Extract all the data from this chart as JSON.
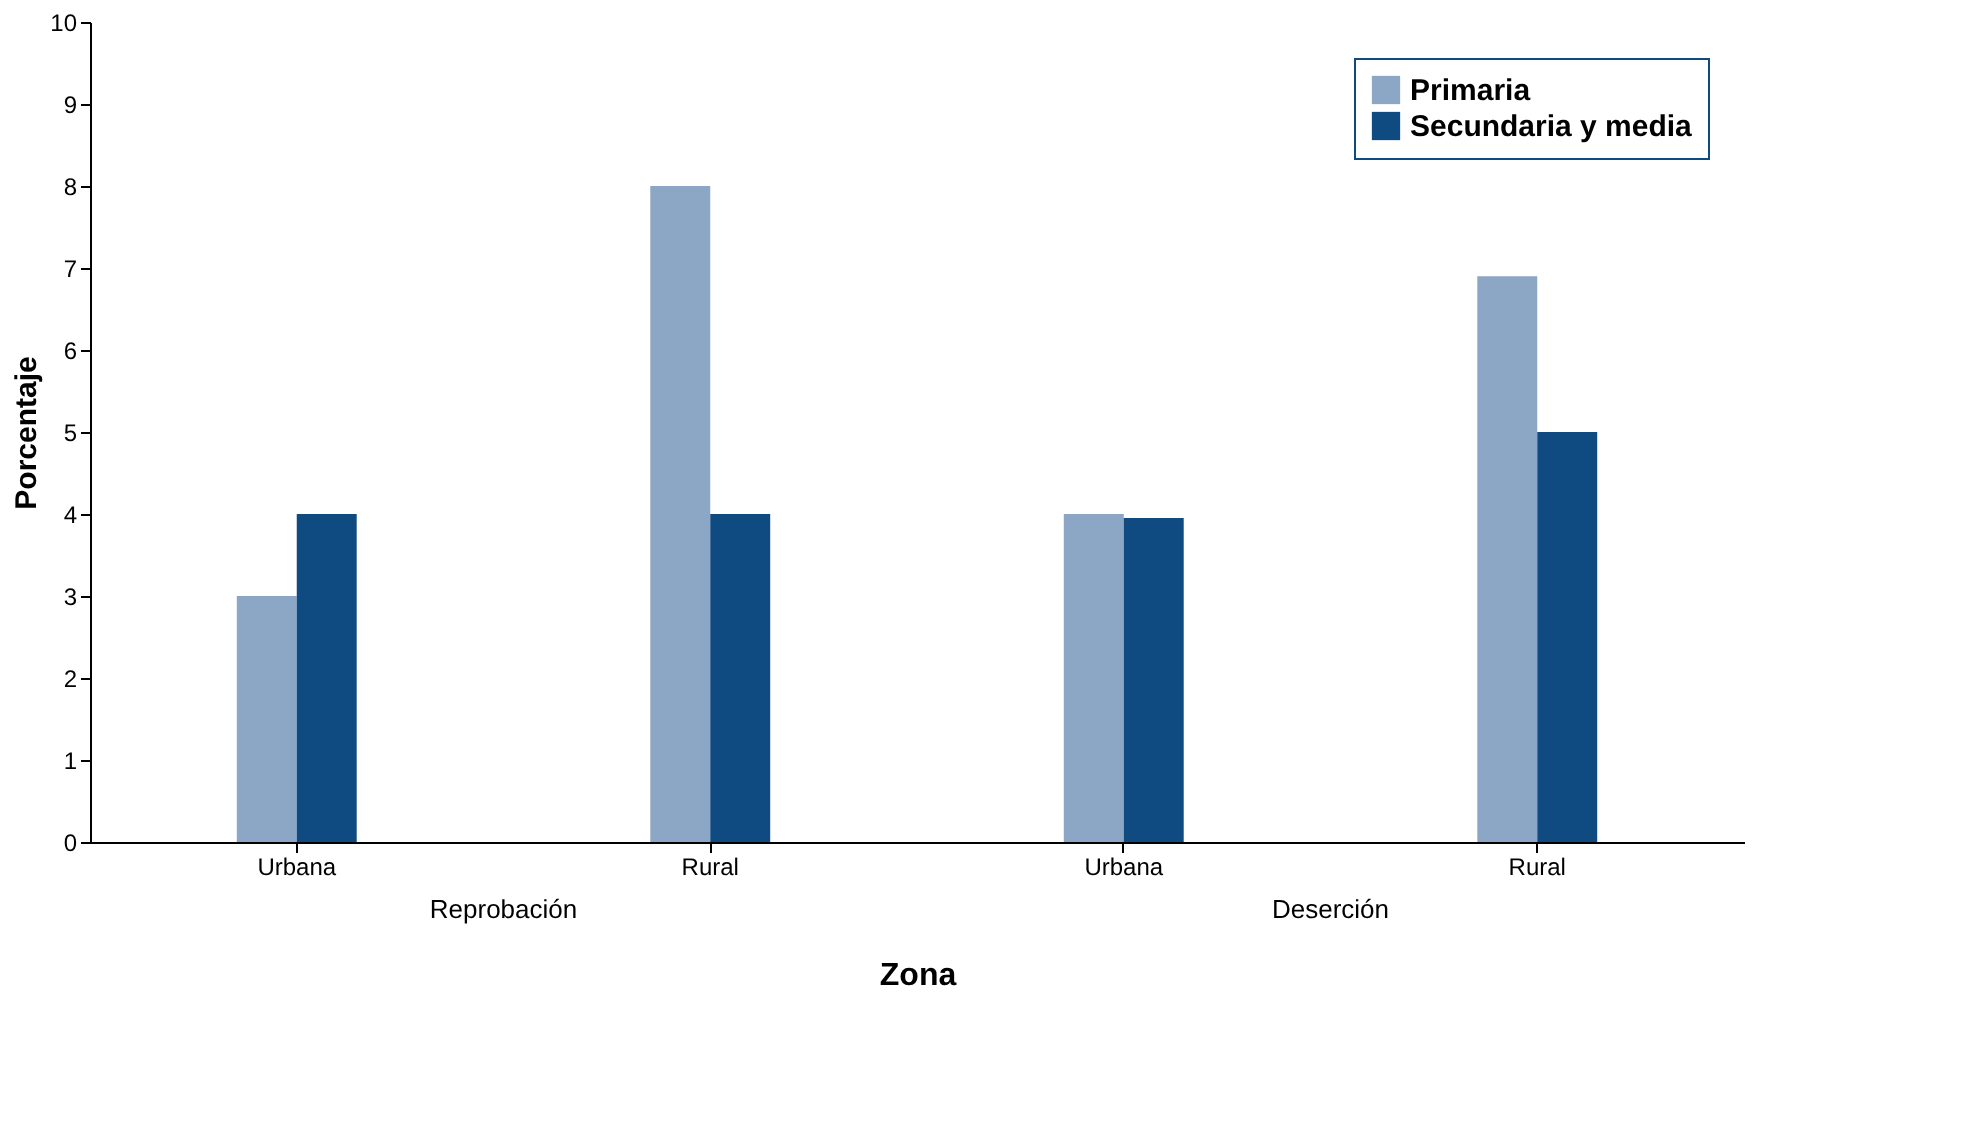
{
  "chart_data": {
    "type": "bar",
    "xlabel": "Zona",
    "ylabel": "Porcentaje",
    "categories": [
      "Urbana",
      "Rural",
      "Urbana",
      "Rural"
    ],
    "annotations": [
      "Reprobación",
      "Deserción"
    ],
    "series": [
      {
        "name": "Primaria",
        "color": "#8ca6c6",
        "values": [
          3,
          8,
          4,
          6.9
        ]
      },
      {
        "name": "Secundaria y media",
        "color": "#0f4a80",
        "values": [
          4,
          4,
          3.95,
          5
        ]
      }
    ],
    "ylim": [
      0,
      10
    ],
    "yticks": [
      0,
      1,
      2,
      3,
      4,
      5,
      6,
      7,
      8,
      9,
      10
    ],
    "grid": false,
    "legend": "top right"
  }
}
